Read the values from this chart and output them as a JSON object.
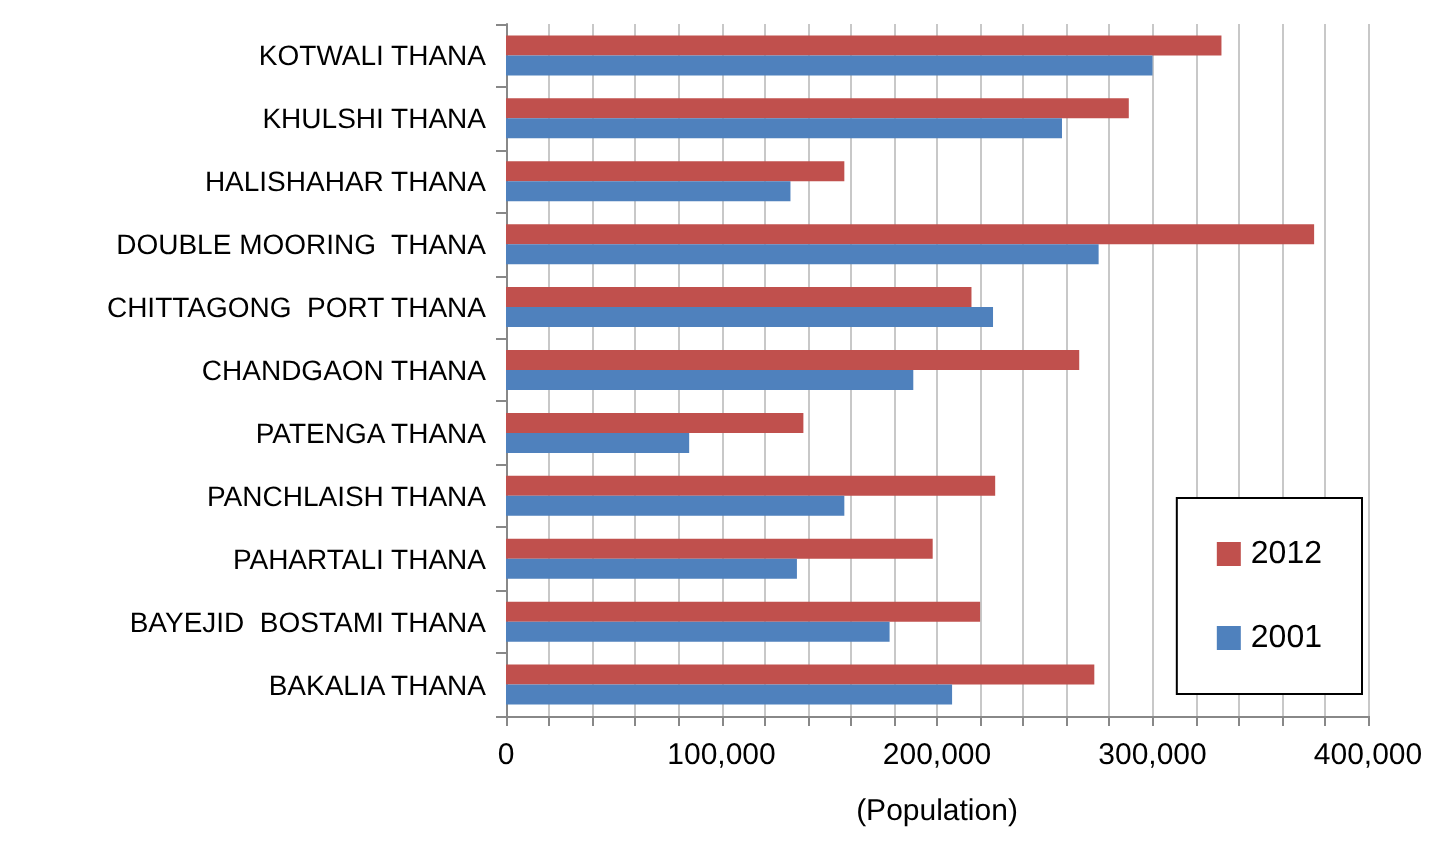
{
  "chart_data": {
    "type": "bar",
    "orientation": "horizontal",
    "xlabel": "(Population)",
    "categories": [
      "KOTWALI THANA",
      "KHULSHI THANA",
      "HALISHAHAR THANA",
      "DOUBLE MOORING  THANA",
      "CHITTAGONG  PORT THANA",
      "CHANDGAON THANA",
      "PATENGA THANA",
      "PANCHLAISH THANA",
      "PAHARTALI THANA",
      "BAYEJID  BOSTAMI THANA",
      "BAKALIA THANA"
    ],
    "series": [
      {
        "name": "2012",
        "color": "#c0504d",
        "values": [
          332000,
          289000,
          157000,
          375000,
          216000,
          266000,
          138000,
          227000,
          198000,
          220000,
          273000
        ]
      },
      {
        "name": "2001",
        "color": "#4f81bd",
        "values": [
          300000,
          258000,
          132000,
          275000,
          226000,
          189000,
          85000,
          157000,
          135000,
          178000,
          207000
        ]
      }
    ],
    "xlim": [
      0,
      400000
    ],
    "xticks": [
      0,
      {
        "value": 20000,
        "label": null
      },
      {
        "value": 40000,
        "label": null
      },
      {
        "value": 60000,
        "label": null
      },
      {
        "value": 80000,
        "label": null
      },
      {
        "value": 100000,
        "label": "100,000"
      },
      {
        "value": 120000,
        "label": null
      },
      {
        "value": 140000,
        "label": null
      },
      {
        "value": 160000,
        "label": null
      },
      {
        "value": 180000,
        "label": null
      },
      {
        "value": 200000,
        "label": "200,000"
      },
      {
        "value": 220000,
        "label": null
      },
      {
        "value": 240000,
        "label": null
      },
      {
        "value": 260000,
        "label": null
      },
      {
        "value": 280000,
        "label": null
      },
      {
        "value": 300000,
        "label": "300,000"
      },
      {
        "value": 320000,
        "label": null
      },
      {
        "value": 340000,
        "label": null
      },
      {
        "value": 360000,
        "label": null
      },
      {
        "value": 380000,
        "label": null
      },
      {
        "value": 400000,
        "label": "400,000"
      }
    ],
    "grid": "x",
    "legend": "bottom right"
  }
}
